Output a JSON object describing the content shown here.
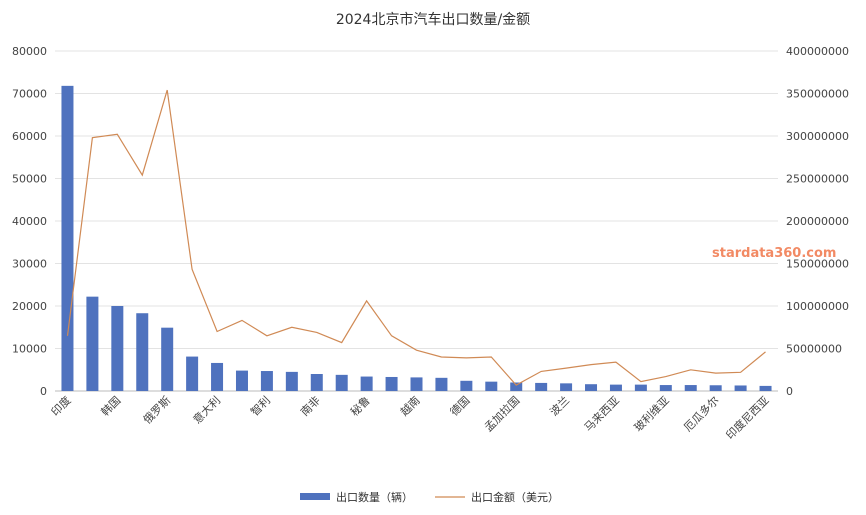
{
  "chart_data": {
    "type": "bar",
    "title": "2024北京市汽车出口数量/金额",
    "categories": [
      "印度",
      "",
      "韩国",
      "",
      "俄罗斯",
      "",
      "意大利",
      "",
      "智利",
      "",
      "南非",
      "",
      "秘鲁",
      "",
      "越南",
      "",
      "德国",
      "",
      "孟加拉国",
      "",
      "波兰",
      "",
      "马来西亚",
      "",
      "玻利维亚",
      "",
      "厄瓜多尔",
      "",
      "印度尼西亚"
    ],
    "ylim_left": [
      0,
      80000
    ],
    "ylim_right": [
      0,
      400000000
    ],
    "left_ticks": [
      "0",
      "10000",
      "20000",
      "30000",
      "40000",
      "50000",
      "60000",
      "70000",
      "80000"
    ],
    "right_ticks": [
      "0",
      "50000000",
      "100000000",
      "150000000",
      "200000000",
      "250000000",
      "300000000",
      "350000000",
      "400000000"
    ],
    "grid": true,
    "legend_position": "bottom",
    "series": [
      {
        "name": "出口数量（辆）",
        "type": "bar",
        "axis": "left",
        "color": "#4f72be",
        "values": [
          71800,
          22200,
          20000,
          18300,
          14900,
          8100,
          6600,
          4800,
          4700,
          4500,
          4000,
          3800,
          3400,
          3300,
          3200,
          3100,
          2400,
          2200,
          2000,
          1900,
          1800,
          1600,
          1500,
          1500,
          1400,
          1400,
          1350,
          1300,
          1200
        ]
      },
      {
        "name": "出口金额（美元）",
        "type": "line",
        "axis": "right",
        "color": "#d08a55",
        "values": [
          65000000,
          298000000,
          302000000,
          254000000,
          354000000,
          143000000,
          70000000,
          83000000,
          65000000,
          75000000,
          69000000,
          57000000,
          106000000,
          65000000,
          48000000,
          40000000,
          39000000,
          40000000,
          7000000,
          23000000,
          27000000,
          31000000,
          34000000,
          11000000,
          17000000,
          25000000,
          21000000,
          22000000,
          46000000
        ]
      }
    ]
  },
  "watermark": "stardata360.com"
}
